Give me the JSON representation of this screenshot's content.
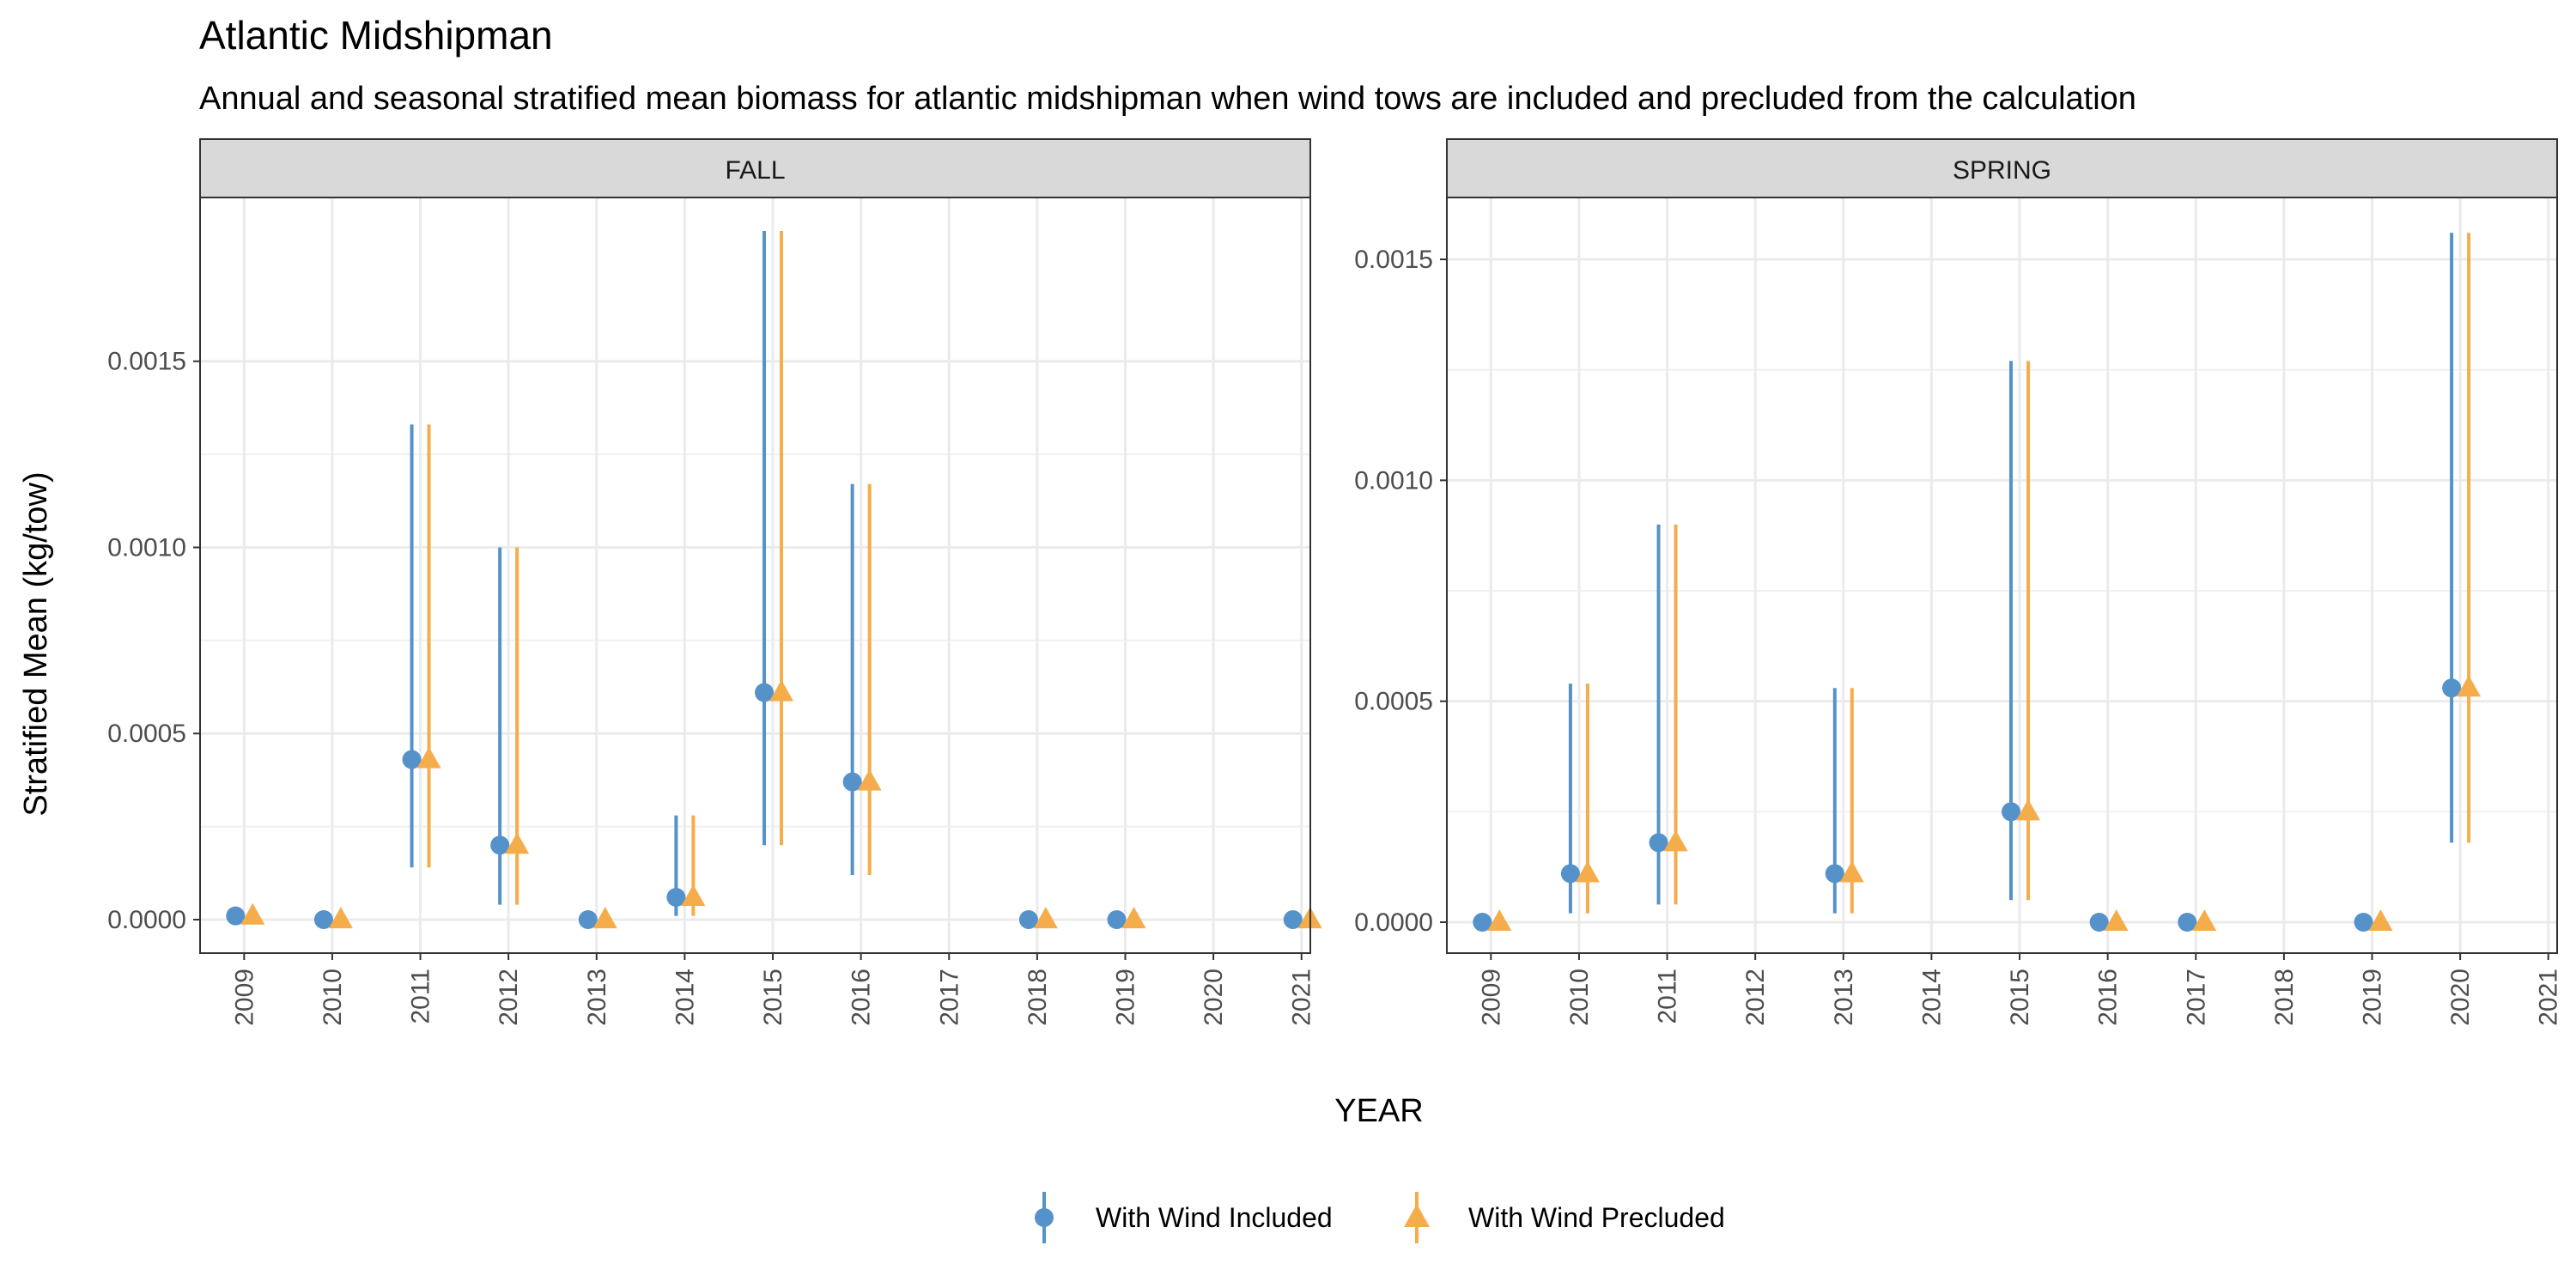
{
  "chart_data": {
    "type": "scatter",
    "title": "Atlantic Midshipman",
    "subtitle": "Annual and seasonal stratified mean biomass for atlantic midshipman when wind tows are included and precluded from the calculation",
    "xlabel": "YEAR",
    "ylabel": "Stratified Mean (kg/tow)",
    "legend_position": "bottom",
    "grid": true,
    "series_styles": [
      {
        "name": "With Wind Included",
        "color": "#5592c9",
        "marker": "circle"
      },
      {
        "name": "With Wind Precluded",
        "color": "#f5ad4b",
        "marker": "triangle"
      }
    ],
    "panels": [
      {
        "strip": "FALL",
        "ylim": [
          -9e-05,
          0.00194
        ],
        "yticks": [
          0.0,
          0.0005,
          0.001,
          0.0015
        ],
        "ytick_labels": [
          "0.0000",
          "0.0005",
          "0.0010",
          "0.0015"
        ],
        "x": [
          "2009",
          "2010",
          "2011",
          "2012",
          "2013",
          "2014",
          "2015",
          "2016",
          "2017",
          "2018",
          "2019",
          "2020",
          "2021"
        ],
        "series": [
          {
            "name": "With Wind Included",
            "points": [
              {
                "x": "2009",
                "y": 1e-05
              },
              {
                "x": "2010",
                "y": 0.0
              },
              {
                "x": "2011",
                "y": 0.00043,
                "lo": 0.00014,
                "hi": 0.00133
              },
              {
                "x": "2012",
                "y": 0.0002,
                "lo": 4e-05,
                "hi": 0.001
              },
              {
                "x": "2013",
                "y": 0.0
              },
              {
                "x": "2014",
                "y": 6e-05,
                "lo": 1e-05,
                "hi": 0.00028
              },
              {
                "x": "2015",
                "y": 0.00061,
                "lo": 0.0002,
                "hi": 0.00185
              },
              {
                "x": "2016",
                "y": 0.00037,
                "lo": 0.00012,
                "hi": 0.00117
              },
              {
                "x": "2018",
                "y": 0.0
              },
              {
                "x": "2019",
                "y": 0.0
              },
              {
                "x": "2021",
                "y": 0.0
              }
            ]
          },
          {
            "name": "With Wind Precluded",
            "points": [
              {
                "x": "2009",
                "y": 1e-05
              },
              {
                "x": "2010",
                "y": 0.0
              },
              {
                "x": "2011",
                "y": 0.00043,
                "lo": 0.00014,
                "hi": 0.00133
              },
              {
                "x": "2012",
                "y": 0.0002,
                "lo": 4e-05,
                "hi": 0.001
              },
              {
                "x": "2013",
                "y": 0.0
              },
              {
                "x": "2014",
                "y": 6e-05,
                "lo": 1e-05,
                "hi": 0.00028
              },
              {
                "x": "2015",
                "y": 0.00061,
                "lo": 0.0002,
                "hi": 0.00185
              },
              {
                "x": "2016",
                "y": 0.00037,
                "lo": 0.00012,
                "hi": 0.00117
              },
              {
                "x": "2018",
                "y": 0.0
              },
              {
                "x": "2019",
                "y": 0.0
              },
              {
                "x": "2021",
                "y": 0.0
              }
            ]
          }
        ]
      },
      {
        "strip": "SPRING",
        "ylim": [
          -7e-05,
          0.00164
        ],
        "yticks": [
          0.0,
          0.0005,
          0.001,
          0.0015
        ],
        "ytick_labels": [
          "0.0000",
          "0.0005",
          "0.0010",
          "0.0015"
        ],
        "x": [
          "2009",
          "2010",
          "2011",
          "2012",
          "2013",
          "2014",
          "2015",
          "2016",
          "2017",
          "2018",
          "2019",
          "2020",
          "2021"
        ],
        "series": [
          {
            "name": "With Wind Included",
            "points": [
              {
                "x": "2009",
                "y": 0.0
              },
              {
                "x": "2010",
                "y": 0.00011,
                "lo": 2e-05,
                "hi": 0.00054
              },
              {
                "x": "2011",
                "y": 0.00018,
                "lo": 4e-05,
                "hi": 0.0009
              },
              {
                "x": "2013",
                "y": 0.00011,
                "lo": 2e-05,
                "hi": 0.00053
              },
              {
                "x": "2015",
                "y": 0.00025,
                "lo": 5e-05,
                "hi": 0.00127
              },
              {
                "x": "2016",
                "y": 0.0
              },
              {
                "x": "2017",
                "y": 0.0
              },
              {
                "x": "2019",
                "y": 0.0
              },
              {
                "x": "2020",
                "y": 0.00053,
                "lo": 0.00018,
                "hi": 0.00156
              }
            ]
          },
          {
            "name": "With Wind Precluded",
            "points": [
              {
                "x": "2009",
                "y": 0.0
              },
              {
                "x": "2010",
                "y": 0.00011,
                "lo": 2e-05,
                "hi": 0.00054
              },
              {
                "x": "2011",
                "y": 0.00018,
                "lo": 4e-05,
                "hi": 0.0009
              },
              {
                "x": "2013",
                "y": 0.00011,
                "lo": 2e-05,
                "hi": 0.00053
              },
              {
                "x": "2015",
                "y": 0.00025,
                "lo": 5e-05,
                "hi": 0.00127
              },
              {
                "x": "2016",
                "y": 0.0
              },
              {
                "x": "2017",
                "y": 0.0
              },
              {
                "x": "2019",
                "y": 0.0
              },
              {
                "x": "2020",
                "y": 0.00053,
                "lo": 0.00018,
                "hi": 0.00156
              }
            ]
          }
        ]
      }
    ]
  }
}
